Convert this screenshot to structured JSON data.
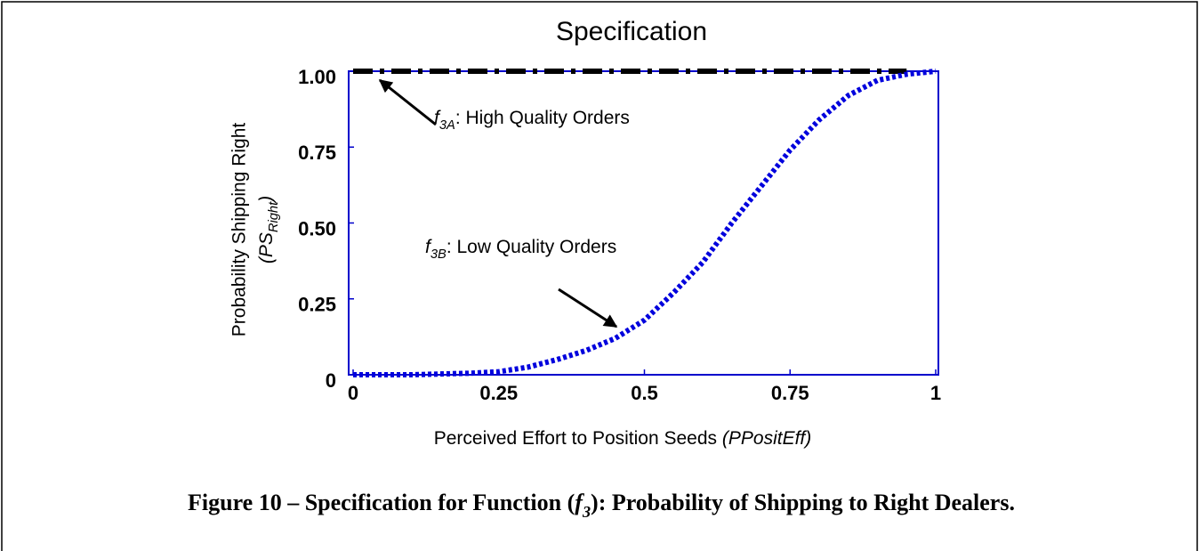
{
  "chart_data": {
    "type": "line",
    "title": "Specification",
    "x_label": {
      "text": "Perceived Effort to Position Seeds ",
      "italic": "(PPositEff)"
    },
    "y_label": {
      "line1": "Probability Shipping Right",
      "open": "(PS",
      "sub": "Right",
      "close": ")"
    },
    "xlim": [
      0,
      1
    ],
    "ylim": [
      0,
      1
    ],
    "xticks": [
      0,
      0.25,
      0.5,
      0.75,
      1
    ],
    "yticks": [
      0,
      {
        "value": 0.25,
        "label": "0.25"
      },
      {
        "value": 0.5,
        "label": "0.50"
      },
      {
        "value": 0.75,
        "label": "0.75"
      },
      {
        "value": 1,
        "label": "1.00"
      }
    ],
    "series": [
      {
        "color": "#000000",
        "x": [
          0,
          0.95
        ],
        "values": [
          1,
          1
        ]
      },
      {
        "color": "#0000dd",
        "x": [
          0,
          0.1,
          0.2,
          0.25,
          0.3,
          0.35,
          0.4,
          0.45,
          0.5,
          0.55,
          0.6,
          0.65,
          0.7,
          0.75,
          0.8,
          0.85,
          0.9,
          0.95,
          1
        ],
        "values": [
          0,
          0,
          0.005,
          0.01,
          0.025,
          0.05,
          0.08,
          0.12,
          0.18,
          0.27,
          0.37,
          0.5,
          0.62,
          0.74,
          0.84,
          0.92,
          0.97,
          0.99,
          1
        ]
      }
    ],
    "annotations": [
      {
        "italic": "f",
        "sub": "3A",
        "text": ": High Quality Orders"
      },
      {
        "italic": "f",
        "sub": "3B",
        "text": ": Low Quality Orders"
      }
    ],
    "caption": {
      "pre": "Figure 10 – Specification for Function (",
      "italic": "f",
      "sub": "3",
      "post": "): Probability of Shipping to Right Dealers."
    }
  }
}
